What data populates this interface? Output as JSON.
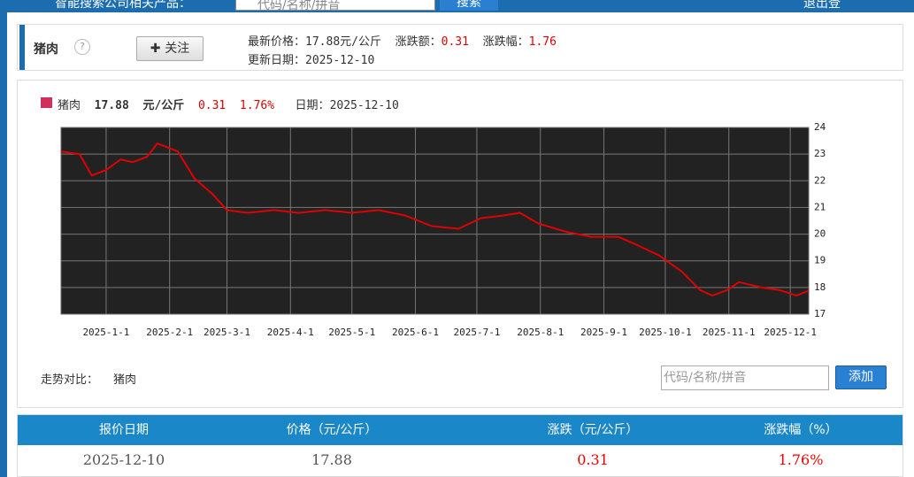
{
  "topbar": {
    "search_label": "智能搜索公司相关产品：",
    "search_placeholder": "代码/名称/拼音",
    "search_button": "搜索",
    "logout": "退出登"
  },
  "header": {
    "name": "猪肉",
    "help": "?",
    "follow": "关注",
    "price_label": "最新价格：",
    "price": "17.88元/公斤",
    "change_label": "涨跌额：",
    "change": "0.31",
    "pct_label": "涨跌幅：",
    "pct": "1.76",
    "date_label": "更新日期：",
    "date": "2025-12-10"
  },
  "legend": {
    "name": "猪肉",
    "price": "17.88",
    "unit": "元/公斤",
    "change": "0.31",
    "pct": "1.76%",
    "date_label": "日期：",
    "date": "2025-12-10"
  },
  "compare": {
    "label": "走势对比：",
    "item": "猪肉",
    "placeholder": "代码/名称/拼音",
    "button": "添加"
  },
  "table": {
    "headers": [
      "报价日期",
      "价格（元/公斤）",
      "涨跌（元/公斤）",
      "涨跌幅（%）"
    ],
    "rows": [
      [
        "2025-12-10",
        "17.88",
        "0.31",
        "1.76%"
      ]
    ]
  },
  "chart_data": {
    "type": "line",
    "x": [
      "2024-12-10",
      "2024-12-19",
      "2024-12-25",
      "2025-1-1",
      "2025-1-8",
      "2025-1-14",
      "2025-1-21",
      "2025-1-26",
      "2025-2-5",
      "2025-2-13",
      "2025-2-22",
      "2025-3-1",
      "2025-3-11",
      "2025-3-24",
      "2025-4-5",
      "2025-4-18",
      "2025-5-1",
      "2025-5-14",
      "2025-5-27",
      "2025-6-9",
      "2025-6-22",
      "2025-7-3",
      "2025-7-14",
      "2025-7-22",
      "2025-7-31",
      "2025-8-13",
      "2025-8-26",
      "2025-9-8",
      "2025-9-17",
      "2025-9-28",
      "2025-10-9",
      "2025-10-18",
      "2025-10-24",
      "2025-10-31",
      "2025-11-6",
      "2025-11-17",
      "2025-11-26",
      "2025-12-4",
      "2025-12-10"
    ],
    "series": [
      {
        "name": "猪肉",
        "color": "#e00000",
        "values": [
          23.1,
          23.0,
          22.2,
          22.4,
          22.8,
          22.7,
          22.9,
          23.4,
          23.1,
          22.1,
          21.5,
          20.9,
          20.8,
          20.9,
          20.8,
          20.9,
          20.8,
          20.9,
          20.7,
          20.3,
          20.2,
          20.6,
          20.7,
          20.8,
          20.4,
          20.1,
          19.9,
          19.9,
          19.6,
          19.2,
          18.6,
          17.9,
          17.7,
          17.9,
          18.2,
          18.0,
          17.9,
          17.7,
          17.88
        ]
      }
    ],
    "xlim": [
      "2024-12-10",
      "2025-12-10"
    ],
    "xticks": [
      "2025-1-1",
      "2025-2-1",
      "2025-3-1",
      "2025-4-1",
      "2025-5-1",
      "2025-6-1",
      "2025-7-1",
      "2025-8-1",
      "2025-9-1",
      "2025-10-1",
      "2025-11-1",
      "2025-12-1"
    ],
    "ylim": [
      17,
      24
    ],
    "yticks": [
      17,
      18,
      19,
      20,
      21,
      22,
      23,
      24
    ],
    "grid": true
  }
}
